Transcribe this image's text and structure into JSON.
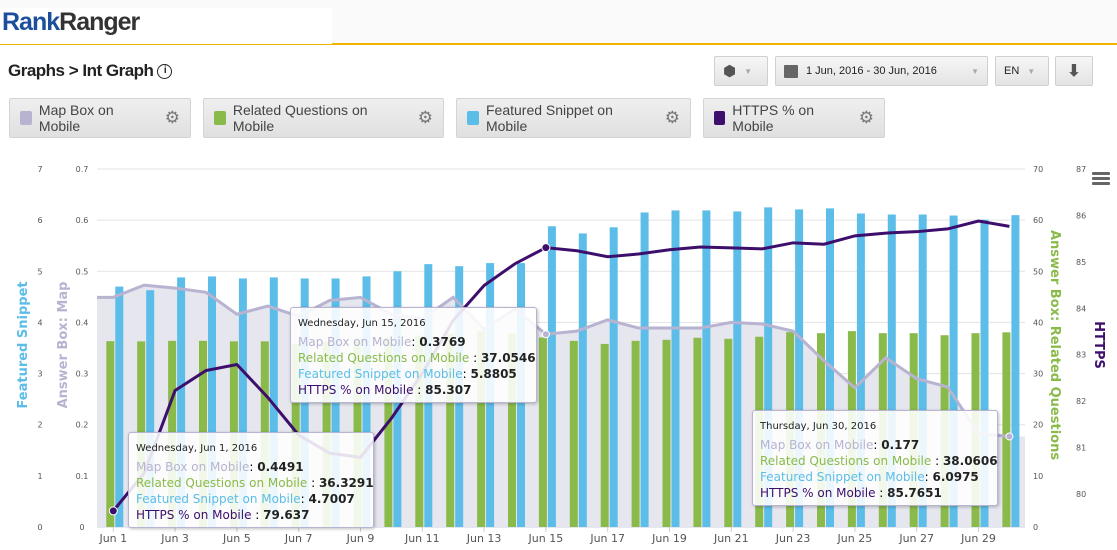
{
  "logo": {
    "part1": "Rank",
    "part2": "Ranger"
  },
  "breadcrumb": {
    "text": "Graphs > Int Graph",
    "info_icon": "i"
  },
  "controls": {
    "date_range": "1 Jun, 2016 - 30 Jun, 2016",
    "language": "EN"
  },
  "legend": [
    {
      "label": "Map Box on Mobile",
      "color": "#b7b3d1"
    },
    {
      "label": "Related Questions on Mobile",
      "color": "#8aba4a"
    },
    {
      "label": "Featured Snippet on Mobile",
      "color": "#5bbde8"
    },
    {
      "label": "HTTPS % on Mobile",
      "color": "#3d0e6b"
    }
  ],
  "chart_data": {
    "type": "bar+line",
    "categories": [
      "Jun 1",
      "Jun 2",
      "Jun 3",
      "Jun 4",
      "Jun 5",
      "Jun 6",
      "Jun 7",
      "Jun 8",
      "Jun 9",
      "Jun 10",
      "Jun 11",
      "Jun 12",
      "Jun 13",
      "Jun 14",
      "Jun 15",
      "Jun 16",
      "Jun 17",
      "Jun 18",
      "Jun 19",
      "Jun 20",
      "Jun 21",
      "Jun 22",
      "Jun 23",
      "Jun 24",
      "Jun 25",
      "Jun 26",
      "Jun 27",
      "Jun 28",
      "Jun 29",
      "Jun 30"
    ],
    "x_tick_labels": [
      "Jun 1",
      "Jun 3",
      "Jun 5",
      "Jun 7",
      "Jun 9",
      "Jun 11",
      "Jun 13",
      "Jun 15",
      "Jun 17",
      "Jun 19",
      "Jun 21",
      "Jun 23",
      "Jun 25",
      "Jun 27",
      "Jun 29"
    ],
    "axes": {
      "featured": {
        "label": "Featured Snippet",
        "ticks": [
          "0",
          "1",
          "2",
          "3",
          "4",
          "5",
          "6",
          "7"
        ],
        "range": [
          0,
          7
        ],
        "color": "#5bbde8"
      },
      "map": {
        "label": "Answer Box: Map",
        "ticks": [
          "0",
          "0.1",
          "0.2",
          "0.3",
          "0.4",
          "0.5",
          "0.6",
          "0.7"
        ],
        "range": [
          0,
          0.7
        ],
        "color": "#b7b3d1"
      },
      "related": {
        "label": "Answer Box: Related Questions",
        "ticks": [
          "0",
          "10",
          "20",
          "30",
          "40",
          "50",
          "60",
          "70"
        ],
        "range": [
          0,
          70
        ],
        "color": "#8aba4a"
      },
      "https": {
        "label": "HTTPS",
        "ticks": [
          "80",
          "81",
          "82",
          "83",
          "84",
          "85",
          "86",
          "87"
        ],
        "range": [
          79.29,
          87
        ],
        "color": "#3d0e6b"
      }
    },
    "series": [
      {
        "name": "Map Box on Mobile",
        "type": "area",
        "axis": "map",
        "color": "#b7b3d1",
        "values": [
          0.4491,
          0.473,
          0.467,
          0.459,
          0.416,
          0.432,
          0.412,
          0.443,
          0.449,
          0.416,
          0.407,
          0.449,
          0.387,
          0.426,
          0.3769,
          0.383,
          0.405,
          0.389,
          0.389,
          0.389,
          0.4,
          0.397,
          0.383,
          0.325,
          0.272,
          0.331,
          0.29,
          0.274,
          0.183,
          0.177
        ]
      },
      {
        "name": "Related Questions on Mobile",
        "type": "bar",
        "axis": "related",
        "color": "#8aba4a",
        "values": [
          36.3291,
          36.3,
          36.4,
          36.4,
          36.3,
          36.3,
          35.8,
          36.2,
          36.5,
          37.0,
          37.4,
          37.8,
          38.3,
          37.9,
          37.0546,
          36.4,
          35.8,
          36.4,
          36.6,
          37.0,
          36.8,
          37.2,
          38.1,
          37.9,
          38.3,
          37.9,
          37.9,
          37.5,
          37.9,
          38.0606
        ]
      },
      {
        "name": "Featured Snippet on Mobile",
        "type": "bar",
        "axis": "featured",
        "color": "#5bbde8",
        "values": [
          4.7007,
          4.63,
          4.88,
          4.9,
          4.86,
          4.88,
          4.86,
          4.86,
          4.9,
          5.0,
          5.14,
          5.1,
          5.16,
          5.16,
          5.8805,
          5.74,
          5.86,
          6.15,
          6.19,
          6.19,
          6.17,
          6.25,
          6.21,
          6.23,
          6.13,
          6.11,
          6.11,
          6.09,
          6.01,
          6.0975
        ]
      },
      {
        "name": "HTTPS % on Mobile",
        "type": "line",
        "axis": "https",
        "color": "#3d0e6b",
        "values": [
          79.637,
          80.45,
          82.23,
          82.66,
          82.79,
          82.08,
          81.27,
          80.88,
          80.79,
          81.63,
          82.6,
          83.74,
          84.49,
          84.96,
          85.307,
          85.24,
          85.11,
          85.17,
          85.26,
          85.32,
          85.3,
          85.28,
          85.41,
          85.38,
          85.56,
          85.62,
          85.65,
          85.71,
          85.88,
          85.7651
        ]
      }
    ],
    "grid": true
  },
  "tooltips": [
    {
      "date": "Wednesday, Jun 1, 2016",
      "rows": [
        {
          "label": "Map Box on Mobile",
          "sep": ": ",
          "value": "0.4491",
          "color": "#b7b3d1"
        },
        {
          "label": "Related Questions on Mobile",
          "sep": " : ",
          "value": "36.3291",
          "color": "#8aba4a"
        },
        {
          "label": "Featured Snippet on Mobile",
          "sep": ": ",
          "value": "4.7007",
          "color": "#5bbde8"
        },
        {
          "label": "HTTPS % on Mobile",
          "sep": " : ",
          "value": "79.637",
          "color": "#3d0e6b"
        }
      ]
    },
    {
      "date": "Wednesday, Jun 15, 2016",
      "rows": [
        {
          "label": "Map Box on Mobile",
          "sep": ": ",
          "value": "0.3769",
          "color": "#b7b3d1"
        },
        {
          "label": "Related Questions on Mobile",
          "sep": " : ",
          "value": "37.0546",
          "color": "#8aba4a"
        },
        {
          "label": "Featured Snippet on Mobile",
          "sep": ": ",
          "value": "5.8805",
          "color": "#5bbde8"
        },
        {
          "label": "HTTPS % on Mobile",
          "sep": " : ",
          "value": "85.307",
          "color": "#3d0e6b"
        }
      ]
    },
    {
      "date": "Thursday, Jun 30, 2016",
      "rows": [
        {
          "label": "Map Box on Mobile",
          "sep": ": ",
          "value": "0.177",
          "color": "#b7b3d1"
        },
        {
          "label": "Related Questions on Mobile",
          "sep": " : ",
          "value": "38.0606",
          "color": "#8aba4a"
        },
        {
          "label": "Featured Snippet on Mobile",
          "sep": ": ",
          "value": "6.0975",
          "color": "#5bbde8"
        },
        {
          "label": "HTTPS % on Mobile",
          "sep": " : ",
          "value": "85.7651",
          "color": "#3d0e6b"
        }
      ]
    }
  ]
}
